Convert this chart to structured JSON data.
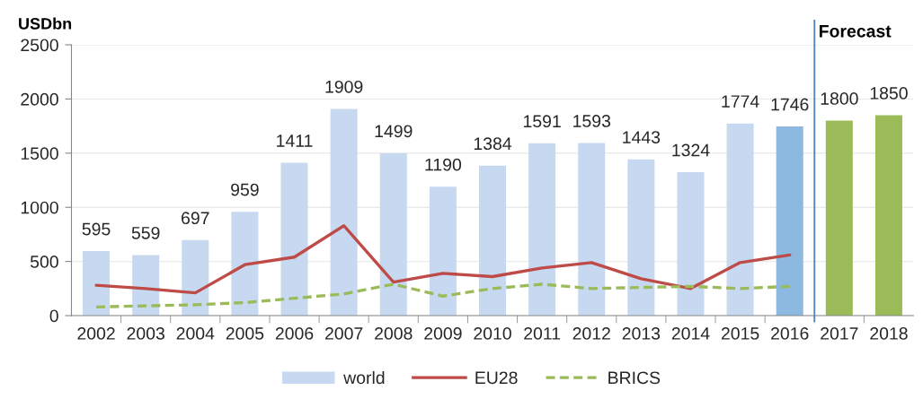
{
  "chart_data": {
    "type": "bar",
    "ylabel": "USDbn",
    "categories": [
      "2002",
      "2003",
      "2004",
      "2005",
      "2006",
      "2007",
      "2008",
      "2009",
      "2010",
      "2011",
      "2012",
      "2013",
      "2014",
      "2015",
      "2016",
      "2017",
      "2018"
    ],
    "series": [
      {
        "name": "world",
        "color": "#c6d9f0",
        "colors": [
          "#c6d9f0",
          "#c6d9f0",
          "#c6d9f0",
          "#c6d9f0",
          "#c6d9f0",
          "#c6d9f0",
          "#c6d9f0",
          "#c6d9f0",
          "#c6d9f0",
          "#c6d9f0",
          "#c6d9f0",
          "#c6d9f0",
          "#c6d9f0",
          "#c6d9f0",
          "#8db8df",
          "#9bbb59",
          "#9bbb59"
        ],
        "values": [
          595,
          559,
          697,
          959,
          1411,
          1909,
          1499,
          1190,
          1384,
          1591,
          1593,
          1443,
          1324,
          1774,
          1746,
          1800,
          1850
        ],
        "value_labels": [
          "595",
          "559",
          "697",
          "959",
          "1411",
          "1909",
          "1499",
          "1190",
          "1384",
          "1591",
          "1593",
          "1443",
          "1324",
          "1774",
          "1746",
          "1800",
          "1850"
        ]
      },
      {
        "name": "EU28",
        "type": "line",
        "color": "#be4b48",
        "line_style": "solid",
        "values": [
          280,
          250,
          210,
          470,
          540,
          830,
          310,
          390,
          360,
          440,
          490,
          340,
          250,
          490,
          560,
          null,
          null
        ]
      },
      {
        "name": "BRICS",
        "type": "line",
        "color": "#9bbb59",
        "line_style": "dashed",
        "values": [
          80,
          90,
          100,
          120,
          160,
          200,
          290,
          180,
          250,
          290,
          250,
          260,
          270,
          250,
          270,
          null,
          null
        ]
      }
    ],
    "ylim": [
      0,
      2500
    ],
    "yticks": [
      0,
      500,
      1000,
      1500,
      2000,
      2500
    ],
    "grid": "y",
    "legend": "bottom",
    "ref_lines": [
      {
        "axis": "x",
        "value": "2017",
        "label": "Forecast",
        "color": "#4f81bd",
        "line_style": "solid"
      }
    ]
  }
}
